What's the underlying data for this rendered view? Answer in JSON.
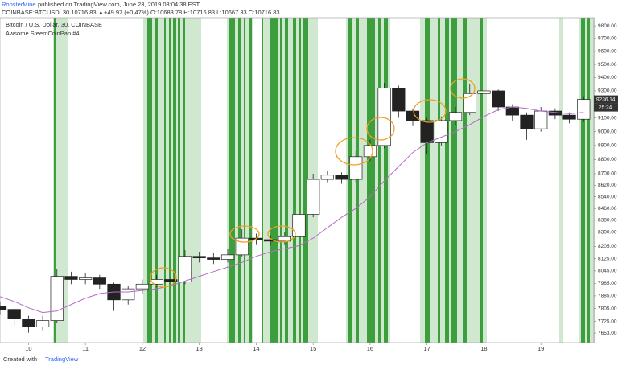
{
  "chart_data": {
    "type": "candlestick",
    "author": "RoosterMine",
    "published": "published on TradingView.com, June 23, 2019 03:04:38 EST",
    "symbol_line": "COINBASE:BTCUSD, 30  10716.83 ▲+49.97 (+0.47%)  O:10683.78 H:10716.83 L:10667.33 C:10716.83",
    "title": "Bitcoin / U.S. Dollar, 30, COINBASE",
    "indicator": "Awsome SteemCoinPan #4",
    "footer": "Created with",
    "footer_brand": "TradingView",
    "log_scale": true,
    "xlim": [
      9.5,
      19.93
    ],
    "xticks": [
      10,
      11,
      12,
      13,
      14,
      15,
      16,
      17,
      18,
      19
    ],
    "ylim": [
      7594,
      9864
    ],
    "yticks": [
      {
        "value": 7653,
        "label": "7653.00"
      },
      {
        "value": 7725,
        "label": "7725.00"
      },
      {
        "value": 7805,
        "label": "7805.00"
      },
      {
        "value": 7885,
        "label": "7885.00"
      },
      {
        "value": 7965,
        "label": "7965.00"
      },
      {
        "value": 8045,
        "label": "8045.00"
      },
      {
        "value": 8125,
        "label": "8125.00"
      },
      {
        "value": 8205,
        "label": "8205.00"
      },
      {
        "value": 8300,
        "label": "8300.00"
      },
      {
        "value": 8380,
        "label": "8380.00"
      },
      {
        "value": 8460,
        "label": "8460.00"
      },
      {
        "value": 8540,
        "label": "8540.00"
      },
      {
        "value": 8620,
        "label": "8620.00"
      },
      {
        "value": 8700,
        "label": "8700.00"
      },
      {
        "value": 8800,
        "label": "8800.00"
      },
      {
        "value": 8900,
        "label": "8900.00"
      },
      {
        "value": 9000,
        "label": "9000.00"
      },
      {
        "value": 9100,
        "label": "9100.00"
      },
      {
        "value": 9200,
        "label": "9200.00"
      },
      {
        "value": 9300,
        "label": "9300.00"
      },
      {
        "value": 9400,
        "label": "9400.00"
      },
      {
        "value": 9500,
        "label": "9500.00"
      },
      {
        "value": 9600,
        "label": "9600.00"
      },
      {
        "value": 9700,
        "label": "9700.00"
      },
      {
        "value": 9800,
        "label": "9800.00"
      }
    ],
    "last_price": {
      "value": 9236.14,
      "label": "9236.14"
    },
    "countdown": "25:24",
    "x": [
      9.5,
      9.75,
      10,
      10.25,
      10.5,
      10.75,
      11,
      11.25,
      11.5,
      11.75,
      12,
      12.25,
      12.5,
      12.75,
      13,
      13.25,
      13.5,
      13.75,
      14,
      14.25,
      14.5,
      14.75,
      15,
      15.25,
      15.5,
      15.75,
      16,
      16.25,
      16.5,
      16.75,
      17,
      17.25,
      17.5,
      17.75,
      18,
      18.25,
      18.5,
      18.75,
      19,
      19.25,
      19.5,
      19.75
    ],
    "open": [
      7820,
      7800,
      7740,
      7690,
      7730,
      8010,
      7990,
      8000,
      7960,
      7860,
      7930,
      7960,
      7990,
      7975,
      8140,
      8130,
      8120,
      8150,
      8260,
      8250,
      8240,
      8270,
      8420,
      8660,
      8690,
      8660,
      8820,
      8900,
      9320,
      9150,
      9080,
      8920,
      9080,
      9140,
      9280,
      9300,
      9180,
      9120,
      9020,
      9150,
      9120,
      9090
    ],
    "high": [
      7850,
      7810,
      7760,
      7760,
      8060,
      8040,
      8030,
      8020,
      7970,
      7950,
      7990,
      8020,
      8010,
      8180,
      8170,
      8160,
      8190,
      8320,
      8290,
      8280,
      8300,
      8450,
      8700,
      8720,
      8710,
      8860,
      8940,
      9360,
      9340,
      9170,
      9100,
      9110,
      9180,
      9350,
      9370,
      9310,
      9200,
      9140,
      9180,
      9170,
      9140,
      9260
    ],
    "low": [
      7770,
      7700,
      7655,
      7670,
      7715,
      7960,
      7960,
      7930,
      7790,
      7830,
      7900,
      7940,
      7940,
      7960,
      8100,
      8090,
      8100,
      8140,
      8220,
      8210,
      8220,
      8250,
      8400,
      8640,
      8630,
      8640,
      8790,
      8880,
      9100,
      9040,
      8840,
      8900,
      9050,
      9120,
      9250,
      9150,
      9080,
      8940,
      9000,
      9090,
      9060,
      9070
    ],
    "close": [
      7800,
      7740,
      7690,
      7730,
      8010,
      7990,
      8000,
      7960,
      7860,
      7930,
      7960,
      7990,
      7975,
      8140,
      8130,
      8120,
      8150,
      8260,
      8250,
      8240,
      8270,
      8420,
      8660,
      8690,
      8660,
      8820,
      8900,
      9320,
      9150,
      9080,
      8920,
      9080,
      9140,
      9280,
      9300,
      9180,
      9120,
      9020,
      9150,
      9120,
      9090,
      9236.14
    ],
    "ma": {
      "color": "#b36bc7",
      "values": [
        7880,
        7850,
        7810,
        7780,
        7790,
        7830,
        7870,
        7900,
        7910,
        7910,
        7920,
        7930,
        7950,
        7980,
        8010,
        8040,
        8070,
        8100,
        8140,
        8170,
        8190,
        8210,
        8260,
        8330,
        8400,
        8460,
        8540,
        8650,
        8750,
        8850,
        8920,
        8960,
        9000,
        9050,
        9110,
        9160,
        9180,
        9170,
        9150,
        9140,
        9130,
        9140
      ]
    }
  }
}
